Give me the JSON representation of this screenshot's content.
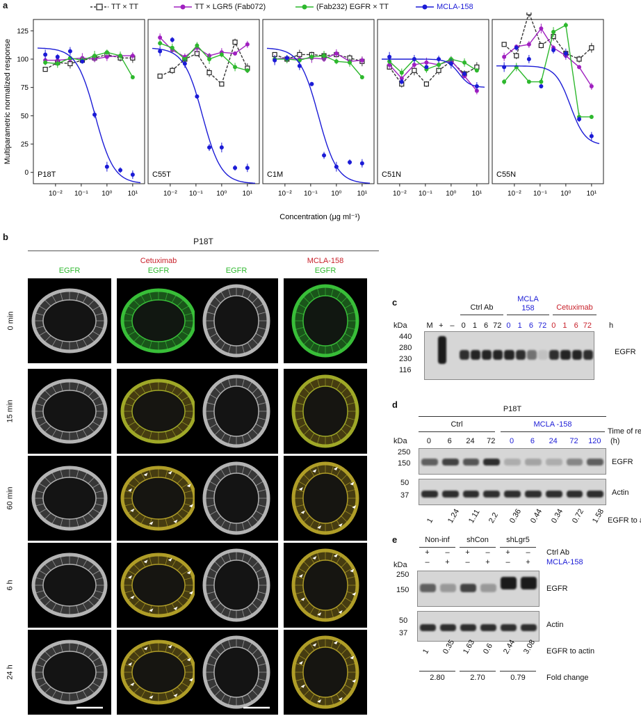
{
  "panels": {
    "a": "a",
    "b": "b",
    "c": "c",
    "d": "d",
    "e": "e"
  },
  "legend": [
    {
      "label": "TT × TT",
      "color": "#333333"
    },
    {
      "label": "TT × LGR5 (Fab072)",
      "color": "#a020c0"
    },
    {
      "label": "(Fab232) EGFR × TT",
      "color": "#2db82d"
    },
    {
      "label": "MCLA-158",
      "color": "#1b1bd6"
    }
  ],
  "chart_data": {
    "type": "line",
    "ylabel": "Multiparametric normalized response",
    "xlabel": "Concentration (μg ml⁻¹)",
    "ylim": [
      -10,
      135
    ],
    "yticks": [
      "0",
      "25",
      "50",
      "75",
      "100",
      "125"
    ],
    "xticks": [
      "10⁻²",
      "10⁻¹",
      "10⁰",
      "10¹"
    ],
    "x": [
      0.004,
      0.012,
      0.037,
      0.11,
      0.33,
      1,
      3.3,
      10
    ],
    "subplots": [
      {
        "name": "P18T",
        "series": [
          {
            "name": "TT × TT",
            "values": [
              91,
              97,
              96,
              99,
              101,
              104,
              101,
              101
            ]
          },
          {
            "name": "TT × LGR5 (Fab072)",
            "values": [
              99,
              99,
              100,
              101,
              100,
              102,
              103,
              103
            ]
          },
          {
            "name": "(Fab232) EGFR × TT",
            "values": [
              97,
              96,
              101,
              99,
              103,
              106,
              103,
              84
            ]
          },
          {
            "name": "MCLA-158",
            "values": [
              104,
              102,
              107,
              98,
              51,
              5,
              2,
              -2
            ]
          }
        ]
      },
      {
        "name": "C55T",
        "series": [
          {
            "name": "TT × TT",
            "values": [
              85,
              90,
              100,
              105,
              88,
              78,
              115,
              92
            ]
          },
          {
            "name": "TT × LGR5 (Fab072)",
            "values": [
              119,
              108,
              102,
              110,
              103,
              106,
              105,
              113
            ]
          },
          {
            "name": "(Fab232) EGFR × TT",
            "values": [
              114,
              110,
              100,
              112,
              100,
              104,
              93,
              90
            ]
          },
          {
            "name": "MCLA-158",
            "values": [
              107,
              117,
              96,
              67,
              22,
              22,
              4,
              4
            ]
          }
        ]
      },
      {
        "name": "C1M",
        "series": [
          {
            "name": "TT × TT",
            "values": [
              104,
              100,
              104,
              104,
              103,
              104,
              101,
              98
            ]
          },
          {
            "name": "TT × LGR5 (Fab072)",
            "values": [
              100,
              101,
              100,
              101,
              100,
              105,
              98,
              99
            ]
          },
          {
            "name": "(Fab232) EGFR × TT",
            "values": [
              100,
              100,
              99,
              102,
              103,
              98,
              97,
              84
            ]
          },
          {
            "name": "MCLA-158",
            "values": [
              99,
              101,
              94,
              78,
              15,
              5,
              9,
              8
            ]
          }
        ]
      },
      {
        "name": "C51N",
        "series": [
          {
            "name": "TT × TT",
            "values": [
              93,
              78,
              90,
              78,
              90,
              98,
              87,
              93
            ]
          },
          {
            "name": "TT × LGR5 (Fab072)",
            "values": [
              95,
              83,
              95,
              97,
              95,
              99,
              85,
              72
            ]
          },
          {
            "name": "(Fab232) EGFR × TT",
            "values": [
              98,
              88,
              100,
              91,
              95,
              100,
              97,
              90
            ]
          },
          {
            "name": "MCLA-158",
            "values": [
              102,
              80,
              100,
              93,
              100,
              96,
              87,
              76
            ]
          }
        ]
      },
      {
        "name": "C55N",
        "series": [
          {
            "name": "TT × TT",
            "values": [
              113,
              103,
              141,
              112,
              120,
              105,
              100,
              110
            ]
          },
          {
            "name": "TT × LGR5 (Fab072)",
            "values": [
              102,
              111,
              113,
              127,
              110,
              103,
              93,
              76
            ]
          },
          {
            "name": "(Fab232) EGFR × TT",
            "values": [
              80,
              93,
              80,
              80,
              124,
              130,
              49,
              49
            ]
          },
          {
            "name": "MCLA-158",
            "values": [
              93,
              110,
              100,
              76,
              108,
              105,
              47,
              32
            ]
          }
        ]
      }
    ]
  },
  "b": {
    "title": "P18T",
    "col_labels": [
      {
        "red": "",
        "green": "EGFR"
      },
      {
        "red": "Cetuximab",
        "green": "EGFR"
      },
      {
        "red": "",
        "green": "EGFR"
      },
      {
        "red": "MCLA-158",
        "green": "EGFR"
      }
    ],
    "row_labels": [
      "0 min",
      "15 min",
      "60 min",
      "6 h",
      "24 h"
    ]
  },
  "c": {
    "kda": "kDa",
    "h": "h",
    "groups": [
      {
        "label": "Ctrl Ab",
        "color": "#111111"
      },
      {
        "label": "MCLA\n158",
        "color": "#1b1bd6"
      },
      {
        "label": "Cetuximab",
        "color": "#c8202a"
      }
    ],
    "lane_ctrl": [
      "M",
      "+",
      "–"
    ],
    "times": [
      "0",
      "1",
      "6",
      "72"
    ],
    "markers": [
      "440",
      "280",
      "230",
      "116"
    ],
    "band": "EGFR"
  },
  "d": {
    "title": "P18T",
    "kda": "kDa",
    "ctrl": "Ctrl",
    "mcla": "MCLA -158",
    "time_label": "Time of recovery",
    "time_unit": "(h)",
    "ctrl_times": [
      "0",
      "6",
      "24",
      "72"
    ],
    "mcla_times": [
      "0",
      "6",
      "24",
      "72",
      "120"
    ],
    "markers_top": [
      "250",
      "150"
    ],
    "markers_bot": [
      "50",
      "37"
    ],
    "band1": "EGFR",
    "band2": "Actin",
    "ratios": [
      "1",
      "1.24",
      "1.11",
      "2.2",
      "0.36",
      "0.44",
      "0.34",
      "0.72",
      "1.58"
    ],
    "ratio_label": "EGFR to actin"
  },
  "e": {
    "kda": "kDa",
    "groups": [
      "Non-inf",
      "shCon",
      "shLgr5"
    ],
    "row1_label": "Ctrl Ab",
    "row2_label": "MCLA-158",
    "row1": [
      "+",
      "–",
      "+",
      "–",
      "+",
      "–"
    ],
    "row2": [
      "–",
      "+",
      "–",
      "+",
      "–",
      "+"
    ],
    "markers_top": [
      "250",
      "150"
    ],
    "markers_bot": [
      "50",
      "37"
    ],
    "band1": "EGFR",
    "band2": "Actin",
    "ratios": [
      "1",
      "0.35",
      "1.63",
      "0.6",
      "2.44",
      "3.08"
    ],
    "ratio_label": "EGFR to actin",
    "folds": [
      "2.80",
      "2.70",
      "0.79"
    ],
    "fold_label": "Fold change"
  }
}
